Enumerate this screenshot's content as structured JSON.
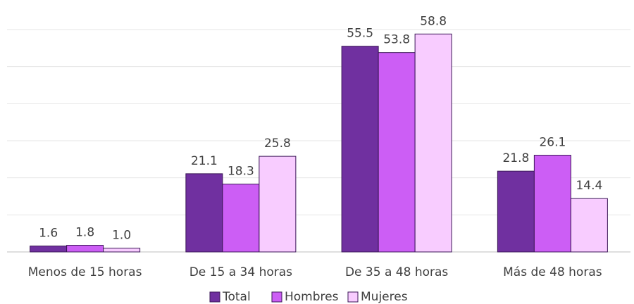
{
  "chart_data": {
    "type": "bar",
    "categories": [
      "Menos de 15 horas",
      "De 15 a 34 horas",
      "De 35 a 48 horas",
      "Más de 48 horas"
    ],
    "series": [
      {
        "name": "Total",
        "color": "#7030a0",
        "values": [
          1.6,
          21.1,
          55.5,
          21.8
        ],
        "value_labels": [
          "1.6",
          "21.1",
          "55.5",
          "21.8"
        ]
      },
      {
        "name": "Hombres",
        "color": "#cc5ef5",
        "values": [
          1.8,
          18.3,
          53.8,
          26.1
        ],
        "value_labels": [
          "1.8",
          "18.3",
          "53.8",
          "26.1"
        ]
      },
      {
        "name": "Mujeres",
        "color": "#f8ccff",
        "values": [
          1.0,
          25.8,
          58.8,
          14.4
        ],
        "value_labels": [
          "1.0",
          "25.8",
          "58.8",
          "14.4"
        ]
      }
    ],
    "ylim": [
      0,
      60
    ],
    "yticks": [
      0,
      10,
      20,
      30,
      40,
      50,
      60
    ],
    "grid": true,
    "legend": "bottom"
  }
}
